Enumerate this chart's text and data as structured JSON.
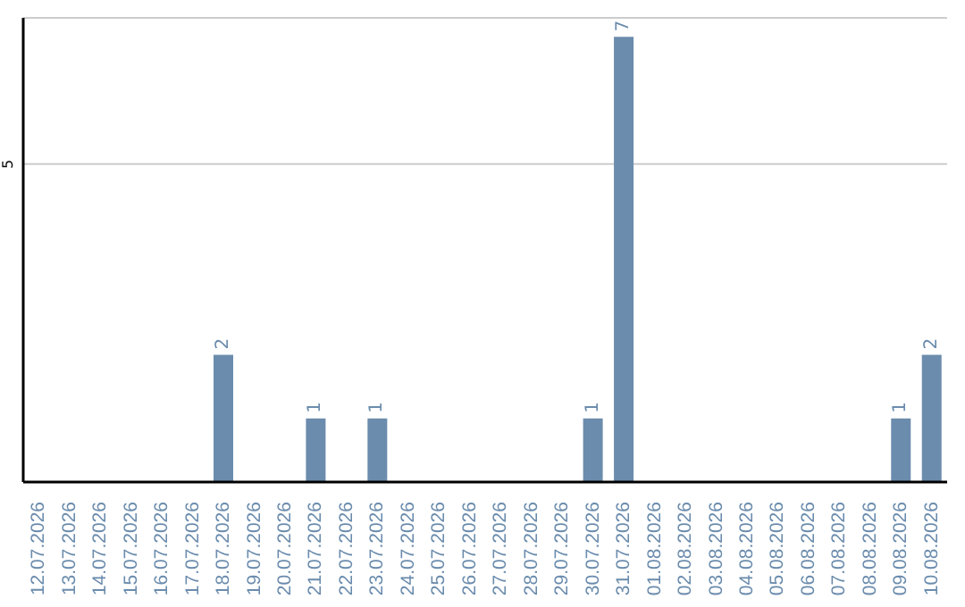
{
  "chart_data": {
    "type": "bar",
    "categories": [
      "12.07.2026",
      "13.07.2026",
      "14.07.2026",
      "15.07.2026",
      "16.07.2026",
      "17.07.2026",
      "18.07.2026",
      "19.07.2026",
      "20.07.2026",
      "21.07.2026",
      "22.07.2026",
      "23.07.2026",
      "24.07.2026",
      "25.07.2026",
      "26.07.2026",
      "27.07.2026",
      "28.07.2026",
      "29.07.2026",
      "30.07.2026",
      "31.07.2026",
      "01.08.2026",
      "02.08.2026",
      "03.08.2026",
      "04.08.2026",
      "05.08.2026",
      "06.08.2026",
      "07.08.2026",
      "08.08.2026",
      "09.08.2026",
      "10.08.2026"
    ],
    "values": [
      0,
      0,
      0,
      0,
      0,
      0,
      2,
      0,
      0,
      1,
      0,
      1,
      0,
      0,
      0,
      0,
      0,
      0,
      1,
      7,
      0,
      0,
      0,
      0,
      0,
      0,
      0,
      0,
      1,
      2
    ],
    "value_labels": [
      null,
      null,
      null,
      null,
      null,
      null,
      "2",
      null,
      null,
      "1",
      null,
      "1",
      null,
      null,
      null,
      null,
      null,
      null,
      "1",
      "7",
      null,
      null,
      null,
      null,
      null,
      null,
      null,
      null,
      "1",
      "2"
    ],
    "color": "#6b8cad",
    "ylim": [
      0,
      7.3
    ],
    "yticks": [
      5
    ],
    "grid": "y"
  }
}
